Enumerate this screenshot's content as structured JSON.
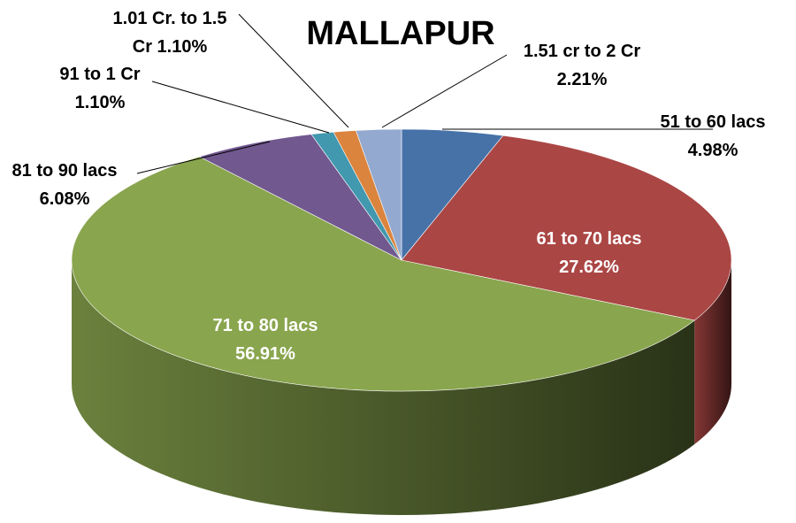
{
  "chart_data": {
    "type": "pie",
    "title": "MALLAPUR",
    "slices": [
      {
        "category": "51 to 60 lacs",
        "value_label": "4.98%",
        "value": 4.98,
        "color": "#4672A8"
      },
      {
        "category": "61 to 70 lacs",
        "value_label": "27.62%",
        "value": 27.62,
        "color": "#AA4644"
      },
      {
        "category": "71 to 80 lacs",
        "value_label": "56.91%",
        "value": 56.91,
        "color": "#89A54E"
      },
      {
        "category": "81 to 90 lacs",
        "value_label": "6.08%",
        "value": 6.08,
        "color": "#71588F"
      },
      {
        "category": "91 to 1 Cr",
        "value_label": "1.10%",
        "value": 1.1,
        "color": "#4198AF"
      },
      {
        "category": "1.01 Cr. to 1.5 Cr",
        "value_label": "1.10%",
        "value": 1.1,
        "color": "#DB843D"
      },
      {
        "category": "1.51 cr to 2 Cr",
        "value_label": "2.21%",
        "value": 2.21,
        "color": "#93A9CF"
      }
    ]
  },
  "labels": [
    {
      "lines": [
        "51 to 60 lacs",
        "4.98%"
      ]
    },
    {
      "lines": [
        "61 to 70 lacs",
        "27.62%"
      ]
    },
    {
      "lines": [
        "71 to 80 lacs",
        "56.91%"
      ]
    },
    {
      "lines": [
        "81 to 90 lacs",
        "6.08%"
      ]
    },
    {
      "lines": [
        "91 to 1 Cr",
        "1.10%"
      ]
    },
    {
      "lines": [
        "1.01 Cr. to 1.5",
        "Cr 1.10%"
      ]
    },
    {
      "lines": [
        "1.51 cr to 2 Cr",
        "2.21%"
      ]
    }
  ]
}
